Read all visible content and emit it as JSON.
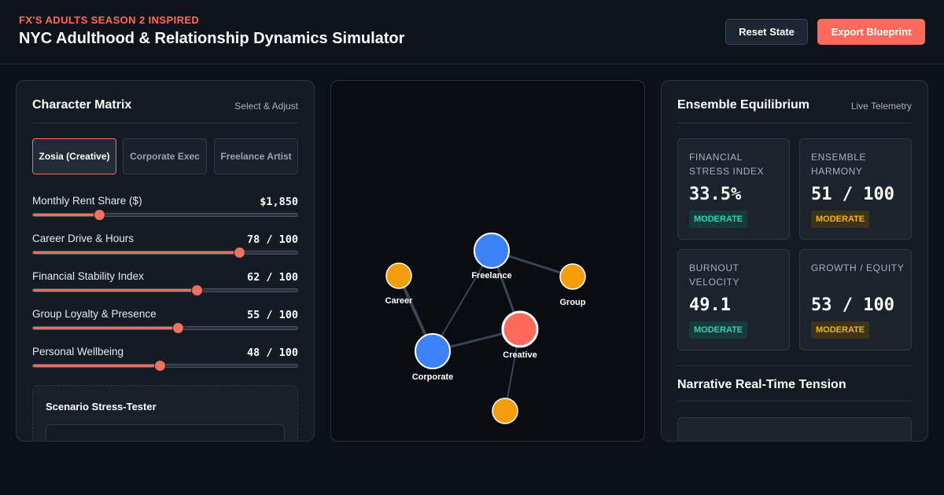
{
  "header": {
    "eyebrow": "FX'S ADULTS SEASON 2 INSPIRED",
    "title": "NYC Adulthood & Relationship Dynamics Simulator",
    "reset_label": "Reset State",
    "export_label": "Export Blueprint"
  },
  "character_matrix": {
    "title": "Character Matrix",
    "meta": "Select & Adjust",
    "tabs": [
      {
        "label": "Zosia (Creative)",
        "active": true
      },
      {
        "label": "Corporate Exec",
        "active": false
      },
      {
        "label": "Freelance Artist",
        "active": false
      }
    ],
    "sliders": [
      {
        "label": "Monthly Rent Share ($)",
        "value": "$1,850",
        "level": 0.25
      },
      {
        "label": "Career Drive & Hours",
        "value": "78 / 100",
        "level": 0.78
      },
      {
        "label": "Financial Stability Index",
        "value": "62 / 100",
        "level": 0.62
      },
      {
        "label": "Group Loyalty & Presence",
        "value": "55 / 100",
        "level": 0.55
      },
      {
        "label": "Personal Wellbeing",
        "value": "48 / 100",
        "level": 0.48
      }
    ],
    "stress_tester": {
      "title": "Scenario Stress-Tester"
    }
  },
  "network": {
    "nodes": [
      {
        "id": "freelance",
        "label": "Freelance",
        "color": "#3b82f6"
      },
      {
        "id": "career",
        "label": "Career",
        "color": "#f59e0b"
      },
      {
        "id": "group",
        "label": "Group",
        "color": "#f59e0b"
      },
      {
        "id": "creative",
        "label": "Creative",
        "color": "#ff6b5a"
      },
      {
        "id": "corporate",
        "label": "Corporate",
        "color": "#3b82f6"
      },
      {
        "id": "unlabeled",
        "label": "",
        "color": "#f59e0b"
      }
    ]
  },
  "equilibrium": {
    "title": "Ensemble Equilibrium",
    "meta": "Live Telemetry",
    "metrics": [
      {
        "label": "FINANCIAL STRESS INDEX",
        "value": "33.5%",
        "badge": "MODERATE",
        "badge_color": "#2bd4b4"
      },
      {
        "label": "ENSEMBLE HARMONY",
        "value": "51 / 100",
        "badge": "MODERATE",
        "badge_color": "#f2b41c"
      },
      {
        "label": "BURNOUT VELOCITY",
        "value": "49.1",
        "badge": "MODERATE",
        "badge_color": "#2bd4b4"
      },
      {
        "label": "GROWTH / EQUITY",
        "value": "53 / 100",
        "badge": "MODERATE",
        "badge_color": "#f2b41c"
      }
    ],
    "tension_title": "Narrative Real-Time Tension"
  },
  "colors": {
    "accent": "#ff6b5a",
    "background": "#0c1118",
    "panel": "#151b23"
  }
}
